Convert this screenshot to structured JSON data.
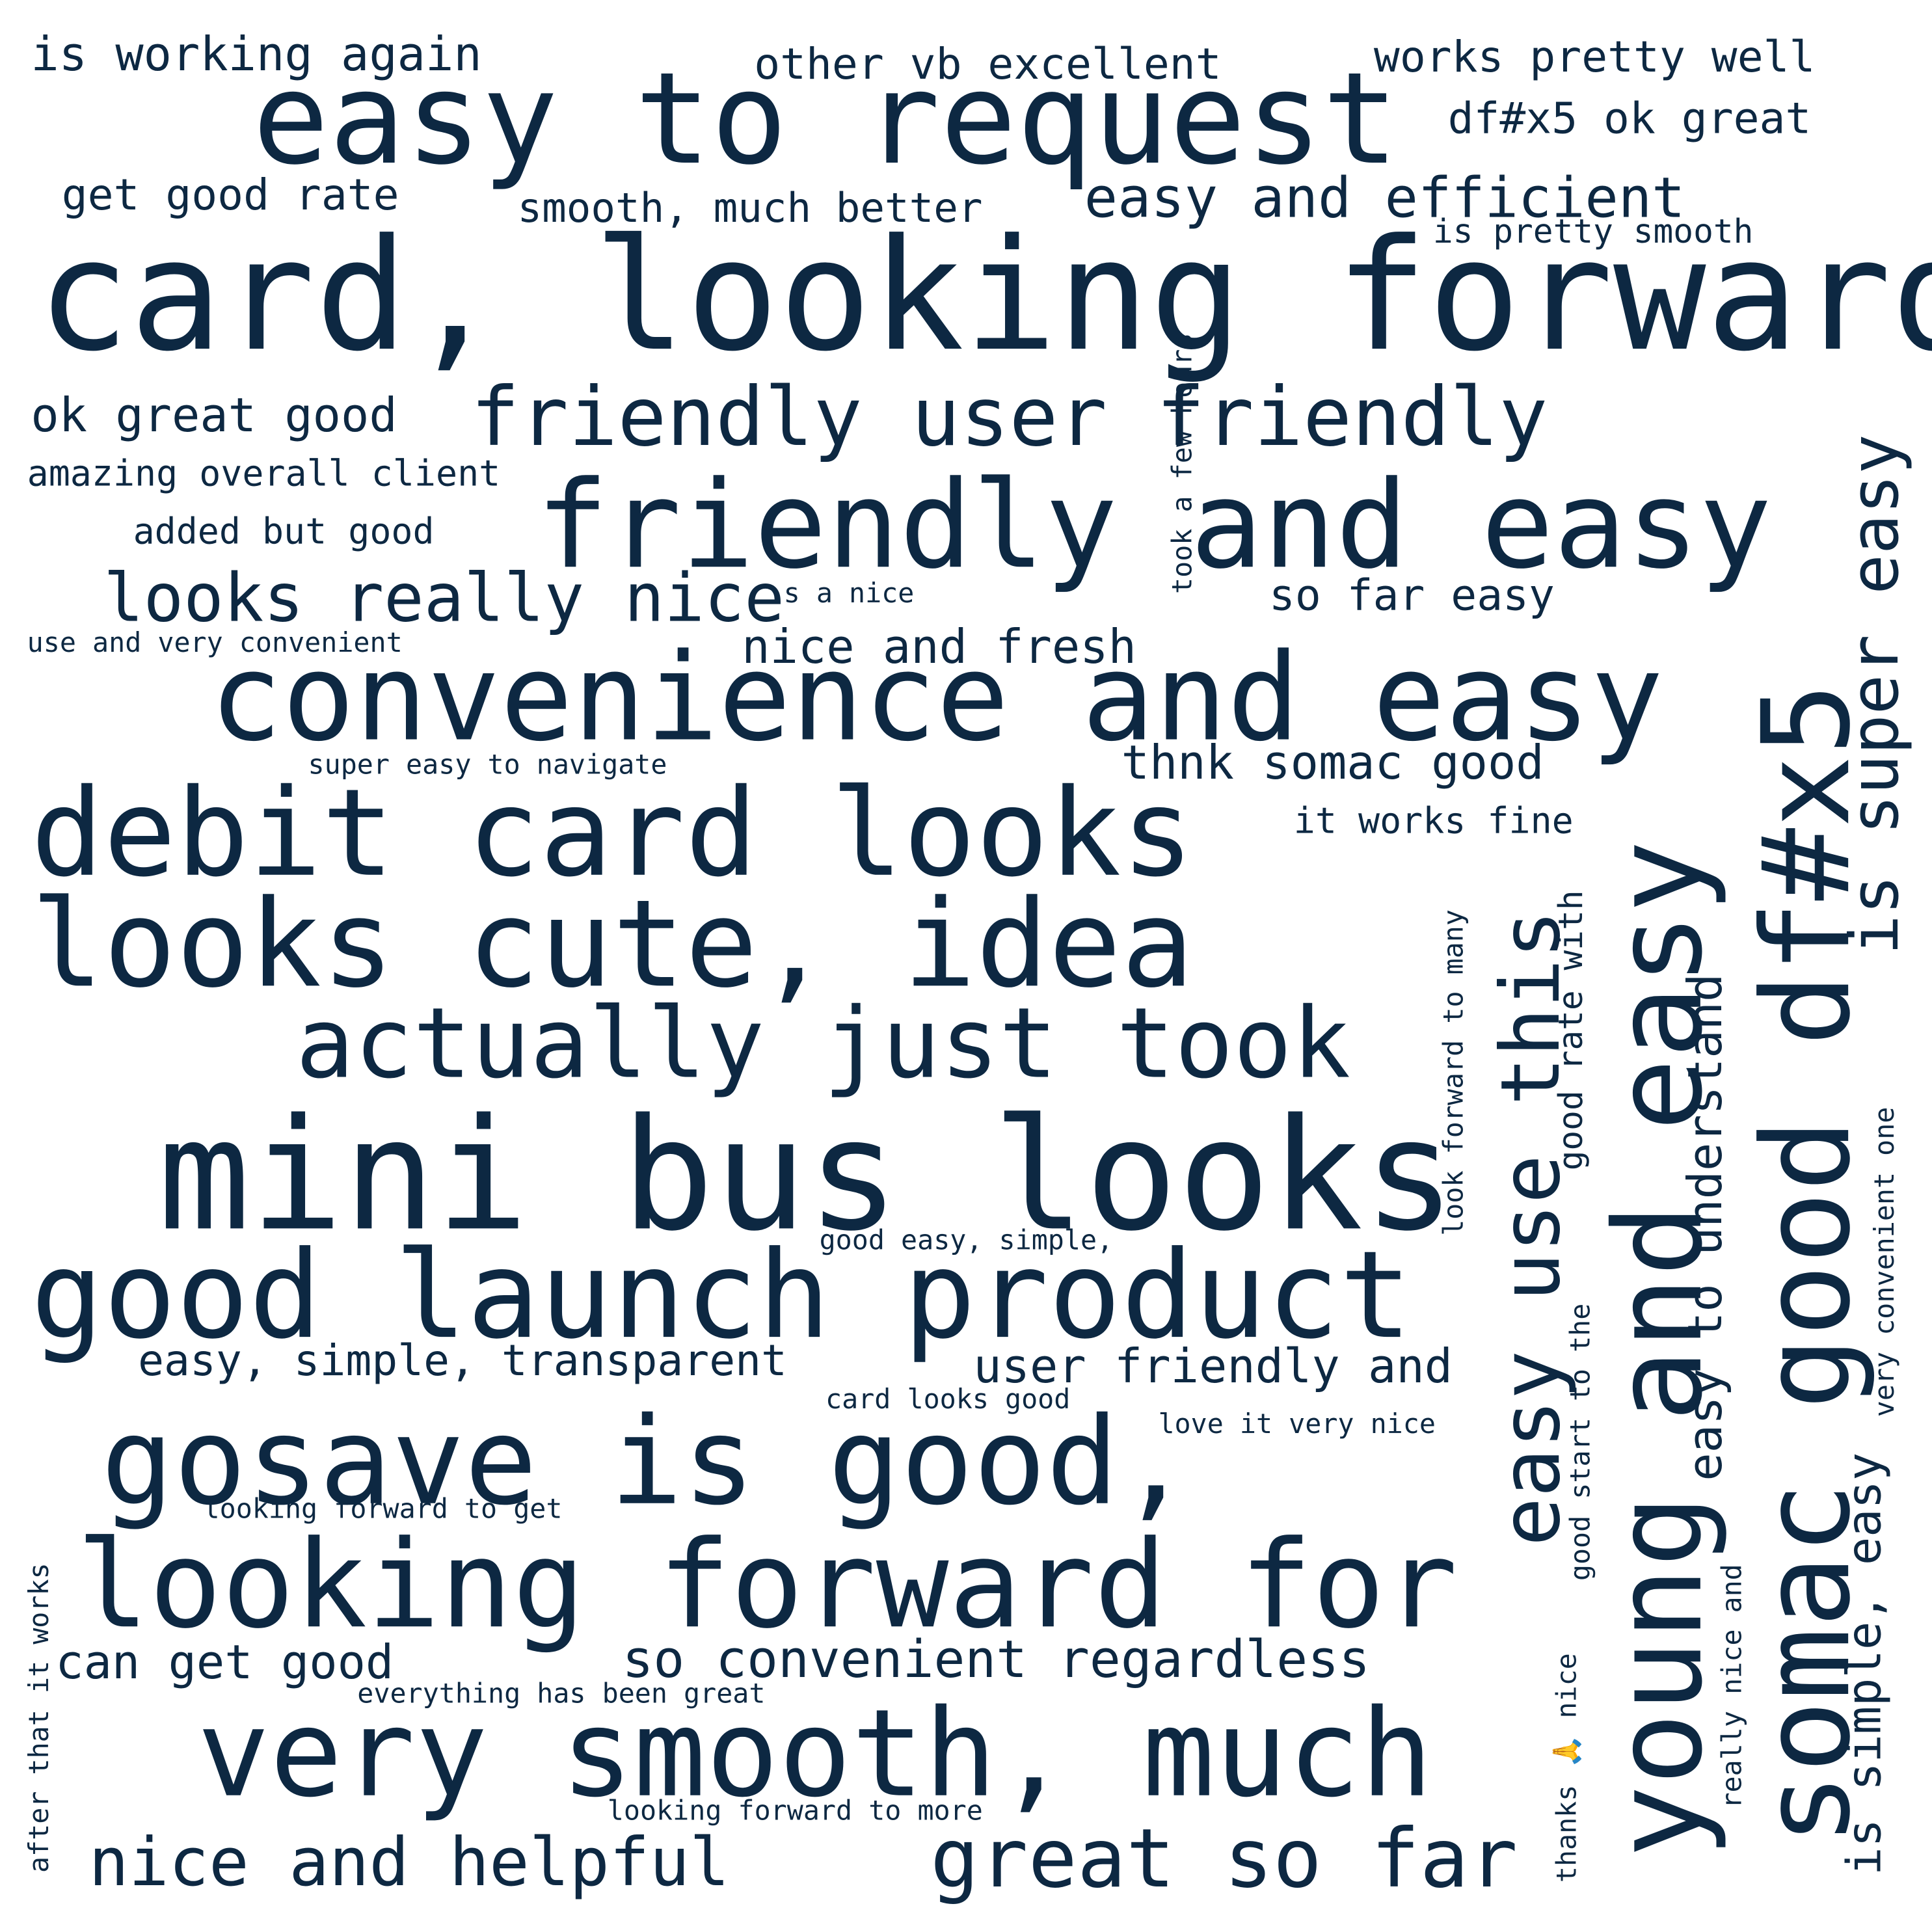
{
  "word_cloud": {
    "text_color": "#0d2842",
    "background_color": "#ffffff",
    "phrases": [
      "card, looking forward",
      "mini bus looks",
      "easy to request",
      "friendly and easy",
      "convenience and easy",
      "debit card looks",
      "looks cute, idea",
      "good launch product",
      "gosave is good,",
      "looking forward for",
      "very smooth, much",
      "actually just took",
      "young and easy",
      "somac good df#x5",
      "friendly user friendly",
      "looks really nice",
      "great so far",
      "nice and helpful",
      "easy use this",
      "is super easy",
      "so convenient regardless",
      "easy and efficient",
      "is working again",
      "works pretty well",
      "other vb excellent",
      "df#x5 ok great",
      "get good rate",
      "smooth, much better",
      "is pretty smooth",
      "ok great good",
      "amazing overall client",
      "added but good",
      "so far easy",
      "nice and fresh",
      "use and very convenient",
      "s a nice",
      "took a few hours",
      "thnk somac good",
      "super easy to navigate",
      "it works fine",
      "easy, simple, transparent",
      "user friendly and",
      "good easy, simple,",
      "card looks good",
      "love it very nice",
      "looking forward to get",
      "can get good",
      "everything has been great",
      "looking forward to more",
      "after that it works",
      "easy to understand",
      "good rate with",
      "look forward to many",
      "good start to the",
      "is simple, easy",
      "very convenient one",
      "really nice and",
      "thanks 🙏 nice"
    ]
  }
}
